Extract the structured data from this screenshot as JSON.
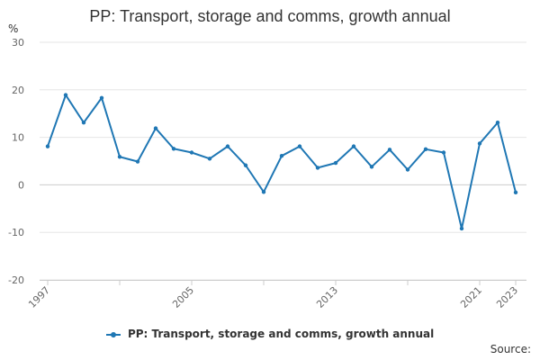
{
  "chart_data": {
    "type": "line",
    "title": "PP: Transport, storage and comms, growth annual",
    "ylabel": "%",
    "xlabel": "",
    "ylim": [
      -20,
      30
    ],
    "yticks": [
      -20,
      -10,
      0,
      10,
      20,
      30
    ],
    "x": [
      1997,
      1998,
      1999,
      2000,
      2001,
      2002,
      2003,
      2004,
      2005,
      2006,
      2007,
      2008,
      2009,
      2010,
      2011,
      2012,
      2013,
      2014,
      2015,
      2016,
      2017,
      2018,
      2019,
      2020,
      2021,
      2022,
      2023
    ],
    "xtick_labels": [
      "1997",
      "2005",
      "2013",
      "2021",
      "2023"
    ],
    "series": [
      {
        "name": "PP: Transport, storage and comms, growth annual",
        "color": "#1f77b4",
        "values": [
          8.1,
          18.9,
          13.1,
          18.3,
          5.9,
          4.9,
          11.9,
          7.6,
          6.8,
          5.5,
          8.1,
          4.1,
          -1.5,
          6.1,
          8.1,
          3.6,
          4.6,
          8.1,
          3.8,
          7.4,
          3.2,
          7.5,
          6.8,
          -9.2,
          8.7,
          13.1,
          -1.6
        ]
      }
    ],
    "legend": "PP: Transport, storage and comms, growth annual",
    "source": "Source:"
  }
}
